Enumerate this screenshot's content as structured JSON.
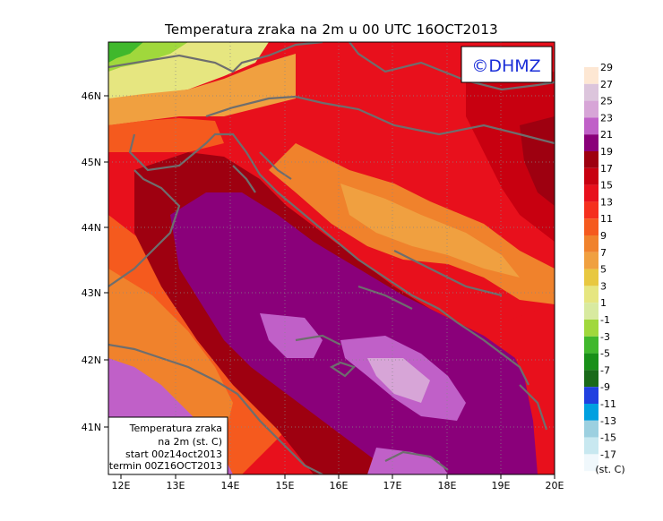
{
  "title": "Temperatura zraka na 2m u 00 UTC 16OCT2013",
  "logo": "©DHMZ",
  "info_box": {
    "line1": "Temperatura zraka",
    "line2": "na 2m (st. C)",
    "line3": "start 00z14oct2013",
    "line4": "termin 00Z16OCT2013"
  },
  "lon_ticks": [
    "12E",
    "13E",
    "14E",
    "15E",
    "16E",
    "17E",
    "18E",
    "19E",
    "20E"
  ],
  "lat_ticks": [
    "46N",
    "45N",
    "44N",
    "43N",
    "42N",
    "41N"
  ],
  "legend": {
    "unit": "(st. C)",
    "labels": [
      "29",
      "27",
      "25",
      "23",
      "21",
      "19",
      "17",
      "15",
      "13",
      "11",
      "9",
      "7",
      "5",
      "3",
      "1",
      "-1",
      "-3",
      "-5",
      "-7",
      "-9",
      "-11",
      "-13",
      "-15",
      "-17"
    ],
    "colors": [
      "#fde7d3",
      "#dcc5dc",
      "#d7a5d7",
      "#c060c8",
      "#8a007a",
      "#9e0010",
      "#c80010",
      "#e8101c",
      "#f5301e",
      "#f55a1e",
      "#f0822c",
      "#f0a040",
      "#e8c840",
      "#e6e680",
      "#d8eaa0",
      "#a0d83c",
      "#40b82c",
      "#189018",
      "#1a6a1a",
      "#2040e0",
      "#00a0e0",
      "#9cd0e0",
      "#c8e8f0",
      "#f0f8fc"
    ]
  }
}
